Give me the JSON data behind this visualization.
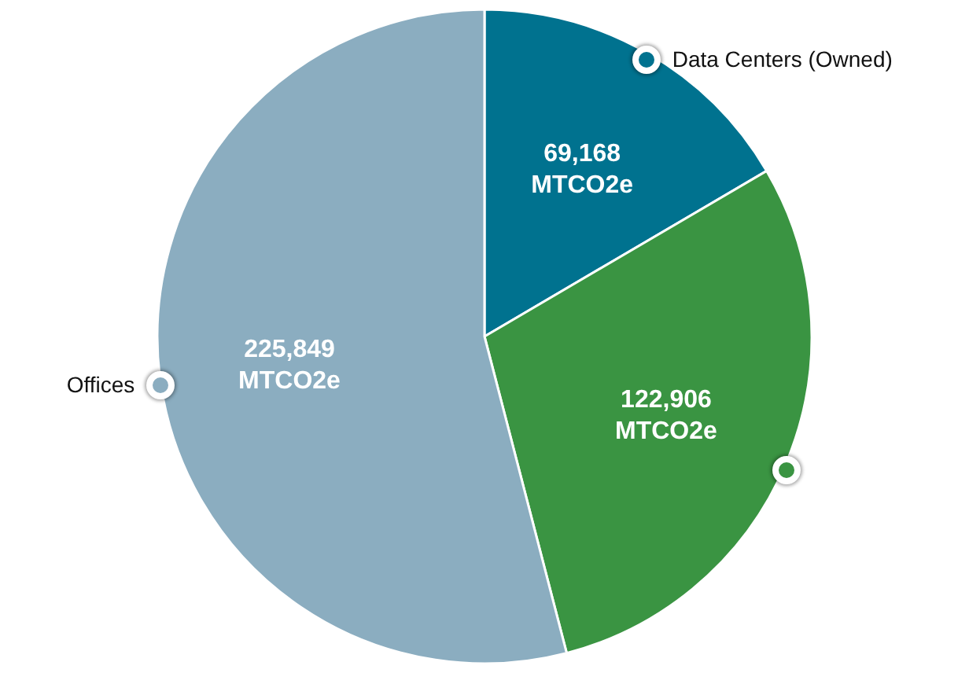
{
  "chart_data": {
    "type": "pie",
    "categories": [
      "Data Centers (Owned)",
      null,
      "Offices"
    ],
    "values": [
      69168,
      122906,
      225849
    ],
    "colors": [
      "#00728f",
      "#3a9442",
      "#8badc0"
    ],
    "value_labels": [
      "69,168 MTCO2e",
      "122,906 MTCO2e",
      "225,849 MTCO2e"
    ]
  }
}
